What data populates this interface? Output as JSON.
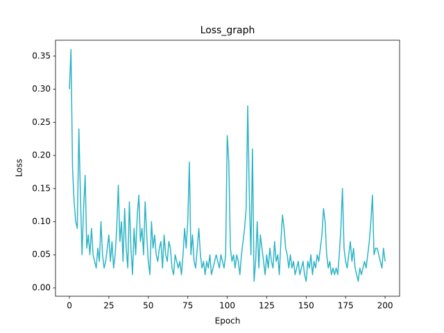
{
  "chart_data": {
    "type": "line",
    "title": "Loss_graph",
    "x_label": "Epoch",
    "y_label": "Loss",
    "x": [
      0,
      1,
      2,
      3,
      4,
      5,
      6,
      7,
      8,
      9,
      10,
      11,
      12,
      13,
      14,
      15,
      16,
      17,
      18,
      19,
      20,
      21,
      22,
      23,
      24,
      25,
      26,
      27,
      28,
      29,
      30,
      31,
      32,
      33,
      34,
      35,
      36,
      37,
      38,
      39,
      40,
      41,
      42,
      43,
      44,
      45,
      46,
      47,
      48,
      49,
      50,
      51,
      52,
      53,
      54,
      55,
      56,
      57,
      58,
      59,
      60,
      61,
      62,
      63,
      64,
      65,
      66,
      67,
      68,
      69,
      70,
      71,
      72,
      73,
      74,
      75,
      76,
      77,
      78,
      79,
      80,
      81,
      82,
      83,
      84,
      85,
      86,
      87,
      88,
      89,
      90,
      91,
      92,
      93,
      94,
      95,
      96,
      97,
      98,
      99,
      100,
      101,
      102,
      103,
      104,
      105,
      106,
      107,
      108,
      109,
      110,
      111,
      112,
      113,
      114,
      115,
      116,
      117,
      118,
      119,
      120,
      121,
      122,
      123,
      124,
      125,
      126,
      127,
      128,
      129,
      130,
      131,
      132,
      133,
      134,
      135,
      136,
      137,
      138,
      139,
      140,
      141,
      142,
      143,
      144,
      145,
      146,
      147,
      148,
      149,
      150,
      151,
      152,
      153,
      154,
      155,
      156,
      157,
      158,
      159,
      160,
      161,
      162,
      163,
      164,
      165,
      166,
      167,
      168,
      169,
      170,
      171,
      172,
      173,
      174,
      175,
      176,
      177,
      178,
      179,
      180,
      181,
      182,
      183,
      184,
      185,
      186,
      187,
      188,
      189,
      190,
      191,
      192,
      193,
      194,
      195,
      196,
      197,
      198,
      199,
      200
    ],
    "values": [
      0.3,
      0.36,
      0.18,
      0.13,
      0.1,
      0.09,
      0.24,
      0.14,
      0.05,
      0.12,
      0.17,
      0.06,
      0.08,
      0.05,
      0.09,
      0.05,
      0.04,
      0.03,
      0.06,
      0.04,
      0.1,
      0.05,
      0.03,
      0.04,
      0.06,
      0.08,
      0.04,
      0.07,
      0.03,
      0.05,
      0.09,
      0.155,
      0.07,
      0.1,
      0.04,
      0.12,
      0.06,
      0.03,
      0.13,
      0.06,
      0.02,
      0.09,
      0.05,
      0.11,
      0.14,
      0.07,
      0.09,
      0.05,
      0.13,
      0.08,
      0.04,
      0.02,
      0.1,
      0.06,
      0.08,
      0.05,
      0.04,
      0.06,
      0.07,
      0.03,
      0.08,
      0.05,
      0.04,
      0.07,
      0.06,
      0.03,
      0.02,
      0.05,
      0.04,
      0.03,
      0.04,
      0.02,
      0.05,
      0.09,
      0.06,
      0.1,
      0.19,
      0.05,
      0.08,
      0.04,
      0.03,
      0.06,
      0.09,
      0.05,
      0.03,
      0.04,
      0.02,
      0.04,
      0.03,
      0.05,
      0.02,
      0.03,
      0.04,
      0.05,
      0.04,
      0.03,
      0.05,
      0.04,
      0.03,
      0.05,
      0.23,
      0.19,
      0.06,
      0.04,
      0.05,
      0.03,
      0.05,
      0.04,
      0.02,
      0.05,
      0.07,
      0.09,
      0.12,
      0.275,
      0.14,
      0.05,
      0.21,
      0.01,
      0.04,
      0.1,
      0.03,
      0.08,
      0.06,
      0.04,
      0.02,
      0.05,
      0.03,
      0.06,
      0.04,
      0.03,
      0.07,
      0.04,
      0.05,
      0.02,
      0.07,
      0.11,
      0.09,
      0.06,
      0.05,
      0.03,
      0.05,
      0.03,
      0.04,
      0.02,
      0.03,
      0.04,
      0.02,
      0.03,
      0.04,
      0.02,
      0.01,
      0.04,
      0.03,
      0.05,
      0.02,
      0.04,
      0.03,
      0.05,
      0.04,
      0.06,
      0.08,
      0.12,
      0.1,
      0.05,
      0.03,
      0.04,
      0.02,
      0.03,
      0.02,
      0.03,
      0.02,
      0.05,
      0.09,
      0.15,
      0.06,
      0.04,
      0.03,
      0.05,
      0.07,
      0.04,
      0.06,
      0.03,
      0.02,
      0.01,
      0.03,
      0.02,
      0.03,
      0.04,
      0.03,
      0.05,
      0.07,
      0.1,
      0.14,
      0.05,
      0.06,
      0.06,
      0.05,
      0.04,
      0.03,
      0.06,
      0.04
    ],
    "color": "#2ab3c4",
    "xlim": [
      -8.8,
      209.2
    ],
    "ylim": [
      -0.0126,
      0.374
    ],
    "xticks": [
      0,
      25,
      50,
      75,
      100,
      125,
      150,
      175,
      200
    ],
    "yticks": [
      {
        "value": 0,
        "label": "0.00"
      },
      0.05,
      {
        "value": 0.1,
        "label": "0.10"
      },
      0.15,
      {
        "value": 0.2,
        "label": "0.20"
      },
      0.25,
      {
        "value": 0.3,
        "label": "0.30"
      },
      0.35
    ],
    "grid": false
  }
}
